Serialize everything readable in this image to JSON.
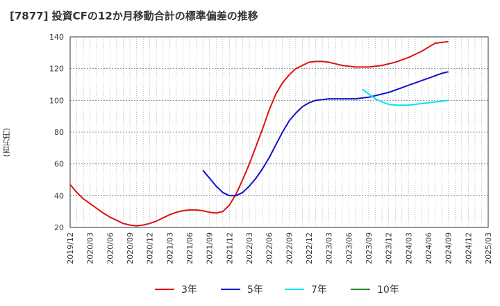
{
  "chart_data": {
    "type": "line",
    "title": "[7877]  投資CFの12か月移動合計の標準偏差の推移",
    "ylabel": "(百万円)",
    "xlabel": "",
    "ylim": [
      20,
      140
    ],
    "yticks": [
      20,
      40,
      60,
      80,
      100,
      120,
      140
    ],
    "x_ticks": [
      "2019/12",
      "2020/03",
      "2020/06",
      "2020/09",
      "2020/12",
      "2021/03",
      "2021/06",
      "2021/09",
      "2021/12",
      "2022/03",
      "2022/06",
      "2022/09",
      "2022/12",
      "2023/03",
      "2023/06",
      "2023/09",
      "2023/12",
      "2024/03",
      "2024/06",
      "2024/09",
      "2024/12",
      "2025/03"
    ],
    "grid": true,
    "legend_position": "bottom",
    "series": [
      {
        "name": "3年",
        "color": "#dd1111",
        "x": [
          "2019/12",
          "2020/01",
          "2020/02",
          "2020/03",
          "2020/04",
          "2020/05",
          "2020/06",
          "2020/07",
          "2020/08",
          "2020/09",
          "2020/10",
          "2020/11",
          "2020/12",
          "2021/01",
          "2021/02",
          "2021/03",
          "2021/04",
          "2021/05",
          "2021/06",
          "2021/07",
          "2021/08",
          "2021/09",
          "2021/10",
          "2021/11",
          "2021/12",
          "2022/01",
          "2022/02",
          "2022/03",
          "2022/04",
          "2022/05",
          "2022/06",
          "2022/07",
          "2022/08",
          "2022/09",
          "2022/10",
          "2022/11",
          "2022/12",
          "2023/01",
          "2023/02",
          "2023/03",
          "2023/04",
          "2023/05",
          "2023/06",
          "2023/07",
          "2023/08",
          "2023/09",
          "2023/10",
          "2023/11",
          "2023/12",
          "2024/01",
          "2024/02",
          "2024/03",
          "2024/04",
          "2024/05",
          "2024/06",
          "2024/07",
          "2024/08",
          "2024/09"
        ],
        "values": [
          47,
          42,
          38,
          35,
          32,
          29,
          26.5,
          24.5,
          22.5,
          21.5,
          21,
          21.5,
          22.5,
          24,
          26,
          28,
          29.5,
          30.5,
          31,
          31,
          30.5,
          29.5,
          29,
          30,
          34,
          41,
          50,
          60,
          71,
          82,
          94,
          104,
          111,
          116,
          120,
          122,
          124,
          124.5,
          124.5,
          124,
          123,
          122,
          121.5,
          121,
          121,
          121,
          121.5,
          122,
          123,
          124,
          125.5,
          127,
          129,
          131,
          133.5,
          136,
          136.5,
          137
        ]
      },
      {
        "name": "5年",
        "color": "#1111cc",
        "x": [
          "2021/08",
          "2021/09",
          "2021/10",
          "2021/11",
          "2021/12",
          "2022/01",
          "2022/02",
          "2022/03",
          "2022/04",
          "2022/05",
          "2022/06",
          "2022/07",
          "2022/08",
          "2022/09",
          "2022/10",
          "2022/11",
          "2022/12",
          "2023/01",
          "2023/02",
          "2023/03",
          "2023/04",
          "2023/05",
          "2023/06",
          "2023/07",
          "2023/08",
          "2023/09",
          "2023/10",
          "2023/11",
          "2023/12",
          "2024/01",
          "2024/02",
          "2024/03",
          "2024/04",
          "2024/05",
          "2024/06",
          "2024/07",
          "2024/08",
          "2024/09"
        ],
        "values": [
          56,
          51,
          46,
          42,
          40,
          40,
          42,
          46,
          51,
          57,
          64,
          72,
          80,
          87,
          92,
          96,
          98.5,
          100,
          100.5,
          101,
          101,
          101,
          101,
          101,
          101.5,
          102,
          103,
          104,
          105,
          106.5,
          108,
          109.5,
          111,
          112.5,
          114,
          115.5,
          117,
          118
        ]
      },
      {
        "name": "7年",
        "color": "#00e5ee",
        "x": [
          "2023/08",
          "2023/09",
          "2023/10",
          "2023/11",
          "2023/12",
          "2024/01",
          "2024/02",
          "2024/03",
          "2024/04",
          "2024/05",
          "2024/06",
          "2024/07",
          "2024/08",
          "2024/09"
        ],
        "values": [
          107,
          104,
          101,
          99,
          97.5,
          97,
          97,
          97,
          97.5,
          98,
          98.5,
          99,
          99.5,
          100
        ]
      },
      {
        "name": "10年",
        "color": "#228b22",
        "x": [],
        "values": []
      }
    ]
  }
}
